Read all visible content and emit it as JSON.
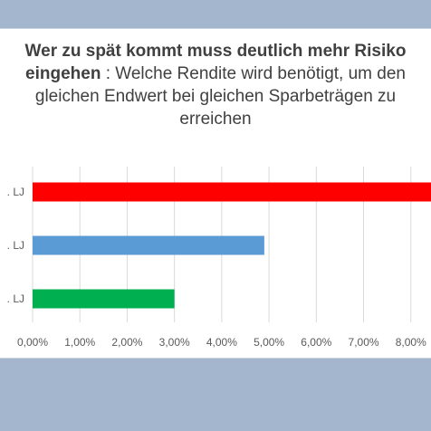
{
  "title_bold": "Wer zu spät kommt muss deutlich mehr Risiko eingehen",
  "title_rest": " : Welche Rendite wird benötigt, um den gleichen Endwert bei gleichen Sparbeträgen zu erreichen",
  "colors": {
    "background": "#a3b6ce",
    "grid": "#d9d9d9",
    "axis_text": "#595959"
  },
  "chart_data": {
    "type": "bar",
    "orientation": "horizontal",
    "categories": [
      ". LJ",
      ". LJ",
      ". LJ"
    ],
    "values": [
      0.09,
      0.049,
      0.03
    ],
    "colors": [
      "#ff0000",
      "#5b9bd5",
      "#00b050"
    ],
    "xlim": [
      0,
      0.09
    ],
    "xticks": [
      "0,00%",
      "1,00%",
      "2,00%",
      "3,00%",
      "4,00%",
      "5,00%",
      "6,00%",
      "7,00%",
      "8,00%"
    ],
    "grid": true
  }
}
